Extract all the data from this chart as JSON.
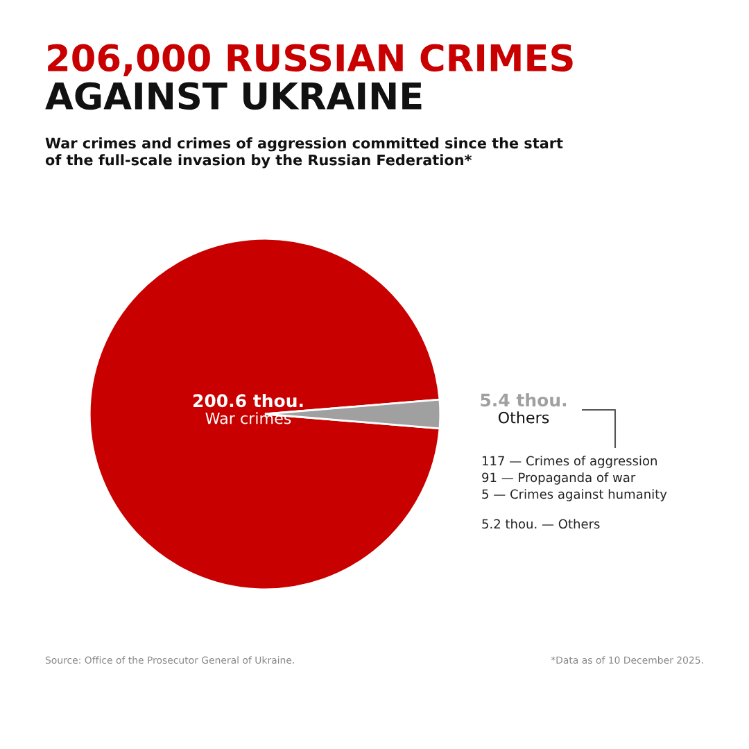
{
  "chart_data": {
    "type": "pie",
    "title": "206,000 RUSSIAN CRIMES\nAGAINST UKRAINE",
    "subtitle": "War crimes and crimes of aggression committed since the start\nof the full-scale invasion by the Russian Federation*",
    "categories": [
      "War crimes",
      "Others"
    ],
    "values": [
      200.6,
      5.4
    ],
    "value_labels": [
      "200.6 thou.",
      "5.4 thou."
    ],
    "colors": [
      "#c80000",
      "#a0a0a0"
    ],
    "annotations": [
      "117 — Crimes of aggression",
      "91 — Propaganda of war",
      "5 — Crimes against humanity",
      "5.2 thou. — Others",
      "Source: Office of the Prosecutor General of Ukraine.",
      "*Data as of 10 December 2025."
    ],
    "legend": false
  }
}
